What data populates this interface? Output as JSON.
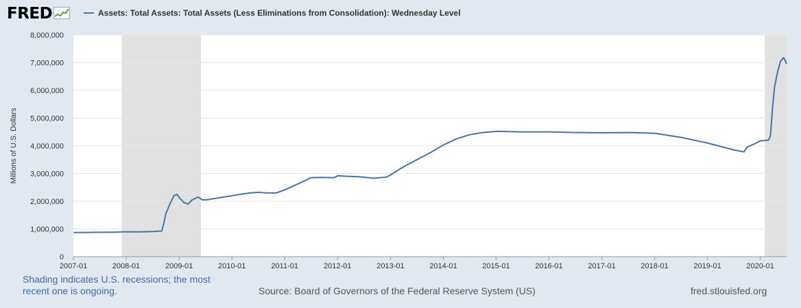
{
  "brand": {
    "logo_text": "FRED",
    "logo_icon": "fred-chart-logo-icon"
  },
  "legend": {
    "label": "Assets: Total Assets: Total Assets (Less Eliminations from Consolidation): Wednesday Level"
  },
  "footer": {
    "recession_note": "Shading indicates U.S. recessions; the most recent one is ongoing.",
    "source": "Source: Board of Governors of the Federal Reserve System (US)",
    "site": "fred.stlouisfed.org"
  },
  "colors": {
    "background": "#e1e9f0",
    "line": "#4572a7",
    "recession": "#e1e1e1",
    "note": "#3b6bad"
  },
  "chart_data": {
    "type": "line",
    "title": "",
    "xlabel": "",
    "ylabel": "Millions of U.S. Dollars",
    "grid": true,
    "legend_position": "top-left",
    "xlim": [
      "2007-01-01",
      "2020-07-01"
    ],
    "ylim": [
      0,
      8000000
    ],
    "yticks": [
      {
        "value": 0,
        "label": "0"
      },
      {
        "value": 1000000,
        "label": "1,000,000"
      },
      {
        "value": 2000000,
        "label": "2,000,000"
      },
      {
        "value": 3000000,
        "label": "3,000,000"
      },
      {
        "value": 4000000,
        "label": "4,000,000"
      },
      {
        "value": 5000000,
        "label": "5,000,000"
      },
      {
        "value": 6000000,
        "label": "6,000,000"
      },
      {
        "value": 7000000,
        "label": "7,000,000"
      },
      {
        "value": 8000000,
        "label": "8,000,000"
      }
    ],
    "xticks": [
      {
        "value": "2007-01-01",
        "label": "2007-01"
      },
      {
        "value": "2008-01-01",
        "label": "2008-01"
      },
      {
        "value": "2009-01-01",
        "label": "2009-01"
      },
      {
        "value": "2010-01-01",
        "label": "2010-01"
      },
      {
        "value": "2011-01-01",
        "label": "2011-01"
      },
      {
        "value": "2012-01-01",
        "label": "2012-01"
      },
      {
        "value": "2013-01-01",
        "label": "2013-01"
      },
      {
        "value": "2014-01-01",
        "label": "2014-01"
      },
      {
        "value": "2015-01-01",
        "label": "2015-01"
      },
      {
        "value": "2016-01-01",
        "label": "2016-01"
      },
      {
        "value": "2017-01-01",
        "label": "2017-01"
      },
      {
        "value": "2018-01-01",
        "label": "2018-01"
      },
      {
        "value": "2019-01-01",
        "label": "2019-01"
      },
      {
        "value": "2020-01-01",
        "label": "2020-01"
      }
    ],
    "recessions": [
      {
        "start": "2007-12-01",
        "end": "2009-06-01"
      },
      {
        "start": "2020-02-01",
        "end": "2020-07-01"
      }
    ],
    "series": [
      {
        "name": "Assets: Total Assets: Total Assets (Less Eliminations from Consolidation): Wednesday Level",
        "points": [
          [
            "2007-01-03",
            870000
          ],
          [
            "2007-04-04",
            875000
          ],
          [
            "2007-07-04",
            880000
          ],
          [
            "2007-10-03",
            885000
          ],
          [
            "2008-01-02",
            900000
          ],
          [
            "2008-04-02",
            895000
          ],
          [
            "2008-07-02",
            905000
          ],
          [
            "2008-09-03",
            925000
          ],
          [
            "2008-09-17",
            1200000
          ],
          [
            "2008-10-01",
            1550000
          ],
          [
            "2008-10-29",
            1900000
          ],
          [
            "2008-11-26",
            2200000
          ],
          [
            "2008-12-17",
            2250000
          ],
          [
            "2009-01-07",
            2100000
          ],
          [
            "2009-02-04",
            1950000
          ],
          [
            "2009-03-04",
            1900000
          ],
          [
            "2009-04-01",
            2050000
          ],
          [
            "2009-05-13",
            2150000
          ],
          [
            "2009-06-10",
            2050000
          ],
          [
            "2009-07-08",
            2050000
          ],
          [
            "2009-09-09",
            2100000
          ],
          [
            "2009-11-04",
            2150000
          ],
          [
            "2010-01-06",
            2200000
          ],
          [
            "2010-03-03",
            2250000
          ],
          [
            "2010-05-05",
            2300000
          ],
          [
            "2010-07-07",
            2320000
          ],
          [
            "2010-09-01",
            2300000
          ],
          [
            "2010-11-03",
            2300000
          ],
          [
            "2011-01-05",
            2420000
          ],
          [
            "2011-03-02",
            2550000
          ],
          [
            "2011-05-04",
            2700000
          ],
          [
            "2011-06-29",
            2850000
          ],
          [
            "2011-09-07",
            2860000
          ],
          [
            "2011-12-07",
            2850000
          ],
          [
            "2012-01-04",
            2920000
          ],
          [
            "2012-03-07",
            2900000
          ],
          [
            "2012-06-06",
            2880000
          ],
          [
            "2012-09-05",
            2830000
          ],
          [
            "2012-12-05",
            2870000
          ],
          [
            "2013-01-02",
            2950000
          ],
          [
            "2013-04-03",
            3250000
          ],
          [
            "2013-07-03",
            3500000
          ],
          [
            "2013-10-02",
            3750000
          ],
          [
            "2014-01-01",
            4030000
          ],
          [
            "2014-04-02",
            4250000
          ],
          [
            "2014-07-02",
            4400000
          ],
          [
            "2014-10-01",
            4480000
          ],
          [
            "2015-01-07",
            4520000
          ],
          [
            "2015-07-01",
            4500000
          ],
          [
            "2016-01-06",
            4500000
          ],
          [
            "2016-07-06",
            4480000
          ],
          [
            "2017-01-04",
            4470000
          ],
          [
            "2017-07-05",
            4480000
          ],
          [
            "2018-01-03",
            4450000
          ],
          [
            "2018-07-04",
            4300000
          ],
          [
            "2019-01-02",
            4100000
          ],
          [
            "2019-07-03",
            3850000
          ],
          [
            "2019-09-11",
            3780000
          ],
          [
            "2019-10-02",
            3950000
          ],
          [
            "2019-12-04",
            4100000
          ],
          [
            "2020-01-01",
            4180000
          ],
          [
            "2020-02-26",
            4200000
          ],
          [
            "2020-03-11",
            4350000
          ],
          [
            "2020-03-25",
            5300000
          ],
          [
            "2020-04-08",
            6100000
          ],
          [
            "2020-04-29",
            6650000
          ],
          [
            "2020-05-20",
            7050000
          ],
          [
            "2020-06-10",
            7180000
          ],
          [
            "2020-06-24",
            7050000
          ],
          [
            "2020-07-01",
            6950000
          ]
        ]
      }
    ]
  }
}
